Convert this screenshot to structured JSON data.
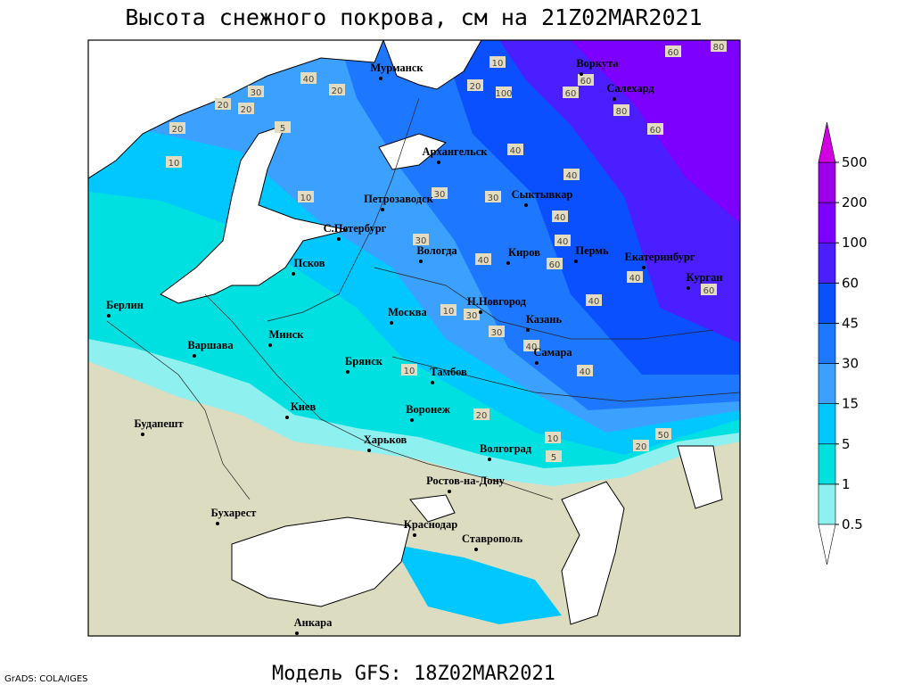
{
  "title": "Высота снежного покрова, см на 21Z02MAR2021",
  "subtitle": "Модель GFS: 18Z02MAR2021",
  "credit": "GrADS: COLA/IGES",
  "cities": [
    "Мурманск",
    "Воркута",
    "Салехард",
    "Архангельск",
    "Сыктывкар",
    "Петрозаводск",
    "С.Петербург",
    "Вологда",
    "Киров",
    "Пермь",
    "Екатеринбург",
    "Курган",
    "Псков",
    "Н.Новгород",
    "Казань",
    "Москва",
    "Берлин",
    "Минск",
    "Варшава",
    "Брянск",
    "Тамбов",
    "Самара",
    "Киев",
    "Воронеж",
    "Будапешт",
    "Харьков",
    "Волгоград",
    "Ростов-на-Дону",
    "Бухарест",
    "Краснодар",
    "Ставрополь",
    "Анкара"
  ],
  "contour_labels": [
    10,
    20,
    60,
    100,
    80,
    40,
    20,
    20,
    60,
    60,
    80,
    60,
    20,
    5,
    20,
    30,
    10,
    40,
    40,
    30,
    30,
    10,
    30,
    40,
    40,
    40,
    60,
    40,
    40,
    40,
    10,
    50,
    20,
    10,
    5,
    30,
    30,
    10,
    40,
    20,
    60
  ],
  "legend": {
    "levels": [
      0.5,
      1,
      5,
      15,
      30,
      45,
      60,
      100,
      200,
      500
    ],
    "colors": [
      "#ffffff",
      "#8ff0f0",
      "#00e0e0",
      "#00c8ff",
      "#3ca0ff",
      "#1e78ff",
      "#0a50ff",
      "#4b1eff",
      "#7d00ff",
      "#9b00e6",
      "#d000e0"
    ]
  }
}
